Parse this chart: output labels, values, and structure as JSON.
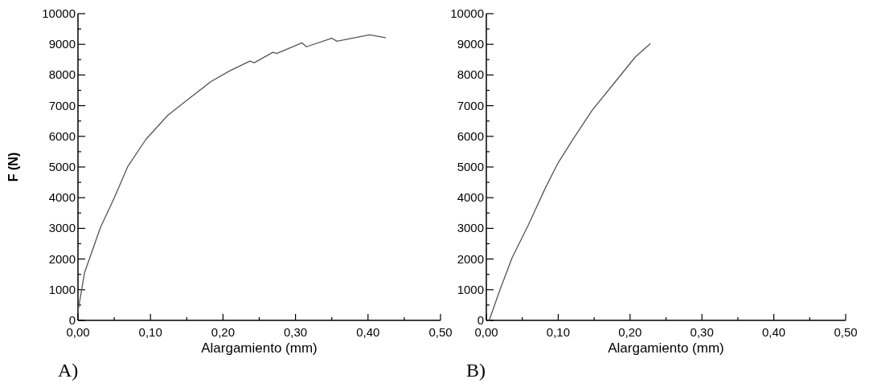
{
  "chart_data": [
    {
      "type": "line",
      "title": "A)",
      "xlabel": "Alargamiento (mm)",
      "ylabel": "F (N)",
      "xlim": [
        0,
        0.5
      ],
      "ylim": [
        0,
        10000
      ],
      "xticks": [
        {
          "value": 0,
          "label": "0,00"
        },
        {
          "value": 0.05,
          "label": null
        },
        {
          "value": 0.1,
          "label": "0,10"
        },
        {
          "value": 0.15,
          "label": null
        },
        {
          "value": 0.2,
          "label": "0,20"
        },
        {
          "value": 0.25,
          "label": null
        },
        {
          "value": 0.3,
          "label": "0,30"
        },
        {
          "value": 0.35,
          "label": null
        },
        {
          "value": 0.4,
          "label": "0,40"
        },
        {
          "value": 0.45,
          "label": null
        },
        {
          "value": 0.5,
          "label": "0,50"
        }
      ],
      "yticks": [
        0,
        {
          "value": 500,
          "label": null
        },
        1000,
        {
          "value": 1500,
          "label": null
        },
        2000,
        {
          "value": 2500,
          "label": null
        },
        3000,
        {
          "value": 3500,
          "label": null
        },
        4000,
        {
          "value": 4500,
          "label": null
        },
        5000,
        {
          "value": 5500,
          "label": null
        },
        6000,
        {
          "value": 6500,
          "label": null
        },
        7000,
        {
          "value": 7500,
          "label": null
        },
        8000,
        {
          "value": 8500,
          "label": null
        },
        9000,
        {
          "value": 9500,
          "label": null
        },
        10000
      ],
      "grid": false,
      "marker": "none",
      "line_style": "solid",
      "series": [
        {
          "color": "#555555",
          "x": [
            0,
            0.009,
            0.031,
            0.05,
            0.069,
            0.094,
            0.124,
            0.15,
            0.183,
            0.209,
            0.237,
            0.243,
            0.269,
            0.274,
            0.309,
            0.315,
            0.35,
            0.357,
            0.402,
            0.424
          ],
          "values": [
            300,
            1550,
            3030,
            3990,
            5030,
            5910,
            6690,
            7170,
            7780,
            8130,
            8450,
            8400,
            8740,
            8700,
            9050,
            8920,
            9200,
            9100,
            9310,
            9220
          ]
        }
      ]
    },
    {
      "type": "line",
      "title": "B)",
      "xlabel": "Alargamiento (mm)",
      "xlim": [
        0,
        0.5
      ],
      "ylim": [
        0,
        10000
      ],
      "xticks": [
        {
          "value": 0,
          "label": "0,00"
        },
        {
          "value": 0.05,
          "label": null
        },
        {
          "value": 0.1,
          "label": "0,10"
        },
        {
          "value": 0.15,
          "label": null
        },
        {
          "value": 0.2,
          "label": "0,20"
        },
        {
          "value": 0.25,
          "label": null
        },
        {
          "value": 0.3,
          "label": "0,30"
        },
        {
          "value": 0.35,
          "label": null
        },
        {
          "value": 0.4,
          "label": "0,40"
        },
        {
          "value": 0.45,
          "label": null
        },
        {
          "value": 0.5,
          "label": "0,50"
        }
      ],
      "yticks": [
        0,
        {
          "value": 500,
          "label": null
        },
        1000,
        {
          "value": 1500,
          "label": null
        },
        2000,
        {
          "value": 2500,
          "label": null
        },
        3000,
        {
          "value": 3500,
          "label": null
        },
        4000,
        {
          "value": 4500,
          "label": null
        },
        5000,
        {
          "value": 5500,
          "label": null
        },
        6000,
        {
          "value": 6500,
          "label": null
        },
        7000,
        {
          "value": 7500,
          "label": null
        },
        8000,
        {
          "value": 8500,
          "label": null
        },
        9000,
        {
          "value": 9500,
          "label": null
        },
        10000
      ],
      "grid": false,
      "marker": "none",
      "line_style": "solid",
      "series": [
        {
          "color": "#555555",
          "x": [
            0.004,
            0.019,
            0.036,
            0.058,
            0.082,
            0.099,
            0.121,
            0.147,
            0.177,
            0.207,
            0.228
          ],
          "values": [
            0,
            1000,
            2050,
            3090,
            4310,
            5100,
            5920,
            6840,
            7710,
            8580,
            9020
          ]
        }
      ]
    }
  ]
}
